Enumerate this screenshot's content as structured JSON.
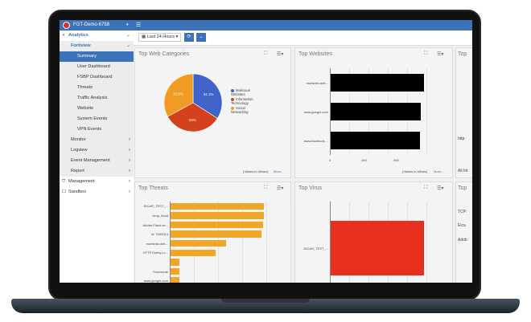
{
  "header": {
    "device": "FGT-Demo-6758"
  },
  "sidebar": {
    "items": [
      {
        "label": "Analytics",
        "level": 0,
        "icon": "chart-icon",
        "expanded": true
      },
      {
        "label": "Fortiview",
        "level": 1,
        "expanded": true
      },
      {
        "label": "Summary",
        "level": 2,
        "selected": true
      },
      {
        "label": "User Dashboard",
        "level": 2
      },
      {
        "label": "FSBP Dashboard",
        "level": 2
      },
      {
        "label": "Threats",
        "level": 2
      },
      {
        "label": "Traffic Analysis",
        "level": 2
      },
      {
        "label": "Website",
        "level": 2
      },
      {
        "label": "System Events",
        "level": 2
      },
      {
        "label": "VPN Events",
        "level": 2
      },
      {
        "label": "Monitor",
        "level": 1
      },
      {
        "label": "Logview",
        "level": 1
      },
      {
        "label": "Event Management",
        "level": 1
      },
      {
        "label": "Report",
        "level": 1
      },
      {
        "label": "Management",
        "level": 0,
        "icon": "shield-icon"
      },
      {
        "label": "Sandbox",
        "level": 0,
        "icon": "square-icon"
      }
    ]
  },
  "toolbar": {
    "time_range": "Last 24 Hours"
  },
  "colors": {
    "accent": "#3c72b8",
    "blue": "#3f63c9",
    "red": "#d4411c",
    "orange": "#f09b22",
    "threat": "#f2a626",
    "virus": "#e8301e"
  },
  "panels": {
    "web_categories": {
      "title": "Top Web Categories",
      "footer": "(Values in bit/sec)",
      "more": "More..."
    },
    "websites": {
      "title": "Top Websites",
      "footer": "(Values in bit/sec)",
      "more": "More..."
    },
    "threats": {
      "title": "Top Threats"
    },
    "virus": {
      "title": "Top Virus"
    },
    "partial_top": {
      "title": "Top",
      "texts": [
        "http:",
        "All Int"
      ]
    },
    "partial_bottom": {
      "title": "Top",
      "texts": [
        "TCP:",
        "Eica",
        "Adob"
      ]
    }
  },
  "chart_data": [
    {
      "type": "pie",
      "title": "Top Web Categories",
      "labels": [
        "Malicious Websites",
        "Information Technology",
        "Social Networking"
      ],
      "values": [
        34.1,
        33,
        32.9
      ],
      "value_labels": [
        "34.1%",
        "33%",
        "32.9%"
      ],
      "colors": [
        "#3f63c9",
        "#d4411c",
        "#f09b22"
      ],
      "legend": "right"
    },
    {
      "type": "bar",
      "orientation": "horizontal",
      "title": "Top Websites",
      "categories": [
        "morishitu.ddn...",
        "www.google.com",
        "www.facebook...."
      ],
      "values": [
        290,
        281,
        278
      ],
      "xticks": [
        "0",
        "100",
        "200"
      ],
      "xlim": [
        0,
        300
      ],
      "color": "#000000"
    },
    {
      "type": "bar",
      "orientation": "horizontal",
      "title": "Top Threats",
      "categories": [
        "EICAR_TEST_...",
        "icmp_flood",
        "Adobe.Flash.ne...",
        "Id: 7630014",
        "morishitu.ddn...",
        "HTTP.Overly.Lo...",
        "",
        "Traceroute",
        "www.google.com",
        "www.facebook...."
      ],
      "values": [
        116,
        116,
        115,
        113,
        69,
        56,
        11,
        11,
        11,
        11
      ],
      "xlim": [
        0,
        150
      ],
      "color": "#f2a626"
    },
    {
      "type": "bar",
      "orientation": "horizontal",
      "title": "Top Virus",
      "categories": [
        "EICAR_TEST_..."
      ],
      "values": [
        290
      ],
      "xlim": [
        0,
        300
      ],
      "color": "#e8301e"
    }
  ]
}
